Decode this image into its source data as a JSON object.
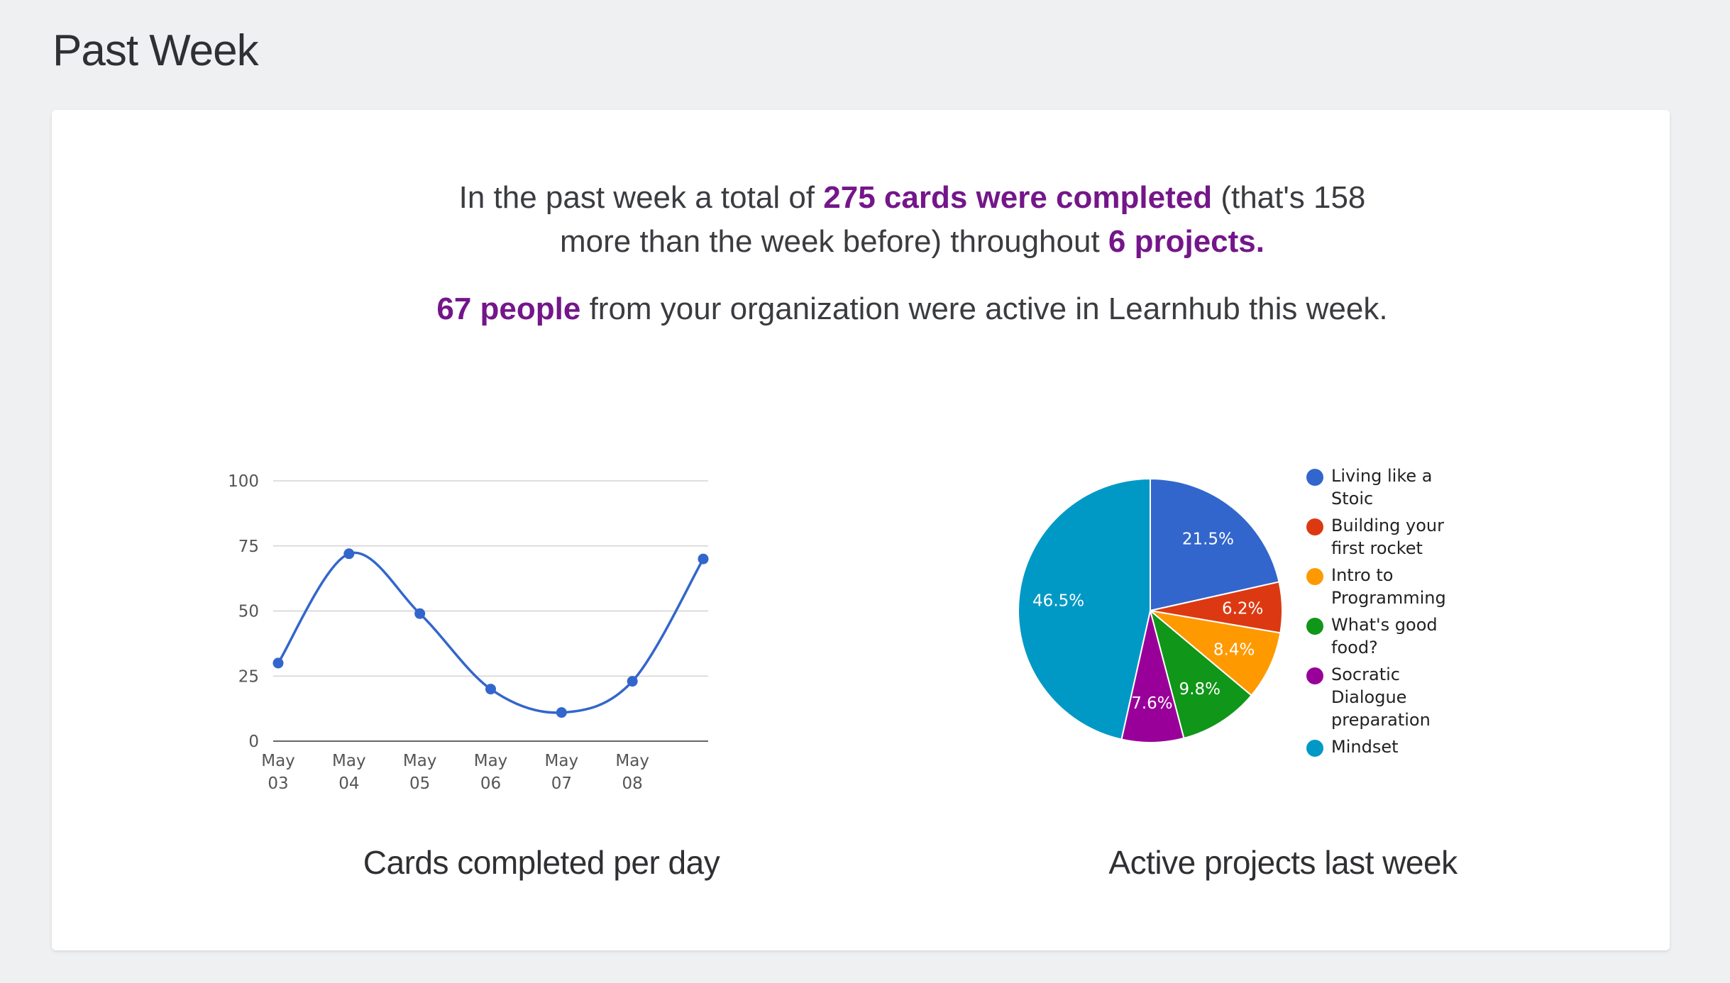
{
  "page": {
    "title": "Past Week"
  },
  "summary": {
    "p1_a": "In the past week a total of ",
    "p1_hl1": "275 cards were completed",
    "p1_b": " (that's 158 more than the week before) throughout ",
    "p1_hl2": "6 projects.",
    "p2_hl": "67 people",
    "p2_a": " from your organization were active in Learnhub this week."
  },
  "chart_data": [
    {
      "type": "line",
      "title": "Cards completed per day",
      "xlabel": "",
      "ylabel": "",
      "x": [
        "May 03",
        "May 04",
        "May 05",
        "May 06",
        "May 07",
        "May 08",
        ""
      ],
      "x_tick_labels": [
        [
          "May",
          "03"
        ],
        [
          "May",
          "04"
        ],
        [
          "May",
          "05"
        ],
        [
          "May",
          "06"
        ],
        [
          "May",
          "07"
        ],
        [
          "May",
          "08"
        ]
      ],
      "values": [
        30,
        72,
        49,
        20,
        11,
        23,
        70
      ],
      "y_ticks": [
        "0",
        "25",
        "50",
        "75",
        "100"
      ],
      "ylim": [
        0,
        100
      ],
      "grid": true,
      "curve": "smooth",
      "color": "#3366cc"
    },
    {
      "type": "pie",
      "title": "Active projects last week",
      "legend_position": "right",
      "slices": [
        {
          "label": "Living like a Stoic",
          "label_lines": [
            "Living like a",
            "Stoic"
          ],
          "value": 21.5,
          "text": "21.5%",
          "color": "#3366cc"
        },
        {
          "label": "Building your first rocket",
          "label_lines": [
            "Building your",
            "first rocket"
          ],
          "value": 6.2,
          "text": "6.2%",
          "color": "#dc3912"
        },
        {
          "label": "Intro to Programming",
          "label_lines": [
            "Intro to",
            "Programming"
          ],
          "value": 8.4,
          "text": "8.4%",
          "color": "#ff9900"
        },
        {
          "label": "What's good food?",
          "label_lines": [
            "What's good",
            "food?"
          ],
          "value": 9.8,
          "text": "9.8%",
          "color": "#109618"
        },
        {
          "label": "Socratic Dialogue preparation",
          "label_lines": [
            "Socratic",
            "Dialogue",
            "preparation"
          ],
          "value": 7.6,
          "text": "7.6%",
          "color": "#990099"
        },
        {
          "label": "Mindset",
          "label_lines": [
            "Mindset"
          ],
          "value": 46.5,
          "text": "46.5%",
          "color": "#0099c6"
        }
      ]
    }
  ]
}
